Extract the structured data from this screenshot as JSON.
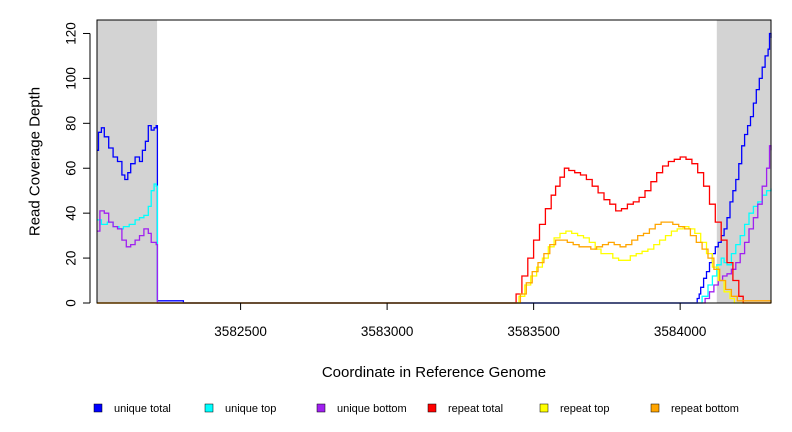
{
  "chart_data": {
    "type": "line",
    "title": "",
    "xlabel": "Coordinate in Reference Genome",
    "ylabel": "Read Coverage Depth",
    "xlim": [
      3582010,
      3584310
    ],
    "ylim": [
      0,
      126
    ],
    "x_ticks": [
      3582500,
      3583000,
      3583500,
      3584000
    ],
    "x_tick_labels": [
      "3582500",
      "3583000",
      "3583500",
      "3584000"
    ],
    "y_ticks": [
      0,
      20,
      40,
      60,
      80,
      100,
      120
    ],
    "y_tick_labels": [
      "0",
      "20",
      "40",
      "60",
      "80",
      "100",
      "120"
    ],
    "shaded_regions": [
      {
        "x": [
          3582010,
          3582215
        ],
        "color": "#d3d3d3"
      },
      {
        "x": [
          3584125,
          3584310
        ],
        "color": "#d3d3d3"
      }
    ],
    "legend_position": "bottom",
    "grid": false,
    "series": [
      {
        "name": "unique total",
        "color": "#0000ff",
        "x": [
          3582010,
          3582015,
          3582025,
          3582035,
          3582050,
          3582065,
          3582080,
          3582095,
          3582105,
          3582115,
          3582125,
          3582140,
          3582155,
          3582165,
          3582175,
          3582185,
          3582195,
          3582205,
          3582212,
          3582216,
          3582230,
          3582300,
          3582305,
          3584050,
          3584058,
          3584065,
          3584070,
          3584080,
          3584090,
          3584100,
          3584110,
          3584120,
          3584130,
          3584140,
          3584150,
          3584160,
          3584170,
          3584180,
          3584190,
          3584200,
          3584210,
          3584220,
          3584230,
          3584240,
          3584250,
          3584260,
          3584270,
          3584280,
          3584290,
          3584300,
          3584305,
          3584310
        ],
        "y": [
          68,
          76,
          78,
          74,
          69,
          65,
          63,
          57,
          55,
          58,
          62,
          65,
          63,
          68,
          72,
          79,
          77,
          78,
          79,
          1,
          1,
          1,
          0,
          0,
          2,
          4,
          7,
          11,
          14,
          18,
          22,
          25,
          27,
          30,
          33,
          38,
          45,
          50,
          55,
          62,
          70,
          75,
          79,
          83,
          89,
          95,
          100,
          105,
          110,
          113,
          120,
          118
        ]
      },
      {
        "name": "unique top",
        "color": "#00ffff",
        "x": [
          3582010,
          3582025,
          3582045,
          3582065,
          3582085,
          3582100,
          3582120,
          3582140,
          3582155,
          3582170,
          3582185,
          3582195,
          3582205,
          3582212,
          3582216,
          3584060,
          3584075,
          3584095,
          3584110,
          3584125,
          3584140,
          3584150,
          3584160,
          3584175,
          3584190,
          3584205,
          3584220,
          3584235,
          3584250,
          3584265,
          3584280,
          3584295,
          3584310
        ],
        "y": [
          37,
          35,
          36,
          34,
          33,
          34,
          35,
          37,
          38,
          39,
          43,
          50,
          53,
          52,
          0,
          0,
          3,
          8,
          12,
          17,
          20,
          18,
          17,
          22,
          26,
          30,
          35,
          40,
          43,
          45,
          48,
          50,
          51
        ]
      },
      {
        "name": "unique bottom",
        "color": "#a020f0",
        "x": [
          3582010,
          3582020,
          3582035,
          3582050,
          3582065,
          3582080,
          3582095,
          3582110,
          3582125,
          3582140,
          3582155,
          3582170,
          3582185,
          3582195,
          3582205,
          3582212,
          3582216,
          3584070,
          3584085,
          3584100,
          3584115,
          3584130,
          3584145,
          3584160,
          3584175,
          3584190,
          3584205,
          3584220,
          3584235,
          3584250,
          3584265,
          3584280,
          3584295,
          3584305,
          3584310
        ],
        "y": [
          32,
          41,
          40,
          36,
          34,
          33,
          28,
          25,
          26,
          28,
          30,
          33,
          31,
          27,
          27,
          26,
          0,
          0,
          2,
          5,
          8,
          10,
          12,
          13,
          15,
          18,
          22,
          27,
          33,
          38,
          44,
          52,
          60,
          70,
          68
        ]
      },
      {
        "name": "repeat total",
        "color": "#ff0000",
        "x": [
          3582010,
          3583430,
          3583440,
          3583460,
          3583480,
          3583500,
          3583520,
          3583540,
          3583560,
          3583575,
          3583590,
          3583605,
          3583620,
          3583640,
          3583660,
          3583680,
          3583700,
          3583720,
          3583740,
          3583760,
          3583780,
          3583800,
          3583820,
          3583840,
          3583860,
          3583880,
          3583900,
          3583920,
          3583940,
          3583960,
          3583980,
          3584000,
          3584020,
          3584040,
          3584060,
          3584080,
          3584100,
          3584120,
          3584140,
          3584160,
          3584180,
          3584200,
          3584215,
          3584310
        ],
        "y": [
          0,
          0,
          4,
          12,
          20,
          28,
          35,
          42,
          48,
          52,
          56,
          60,
          59,
          58,
          57,
          55,
          52,
          49,
          46,
          44,
          41,
          42,
          44,
          45,
          47,
          50,
          54,
          58,
          61,
          63,
          64,
          65,
          64,
          62,
          58,
          52,
          44,
          36,
          28,
          18,
          10,
          3,
          0,
          0
        ]
      },
      {
        "name": "repeat top",
        "color": "#ffff00",
        "x": [
          3582010,
          3583440,
          3583450,
          3583470,
          3583490,
          3583510,
          3583530,
          3583550,
          3583570,
          3583590,
          3583610,
          3583630,
          3583650,
          3583670,
          3583690,
          3583710,
          3583730,
          3583750,
          3583770,
          3583790,
          3583810,
          3583830,
          3583850,
          3583870,
          3583890,
          3583910,
          3583930,
          3583950,
          3583970,
          3583990,
          3584010,
          3584030,
          3584050,
          3584070,
          3584090,
          3584110,
          3584130,
          3584150,
          3584170,
          3584185,
          3584310
        ],
        "y": [
          0,
          0,
          3,
          8,
          12,
          16,
          20,
          25,
          29,
          31,
          32,
          31,
          30,
          29,
          27,
          24,
          22,
          22,
          20,
          19,
          19,
          21,
          22,
          23,
          24,
          26,
          28,
          30,
          32,
          33,
          34,
          33,
          31,
          27,
          22,
          16,
          10,
          5,
          2,
          0,
          0
        ]
      },
      {
        "name": "repeat bottom",
        "color": "#ffa500",
        "x": [
          3582010,
          3583440,
          3583455,
          3583475,
          3583495,
          3583515,
          3583535,
          3583555,
          3583575,
          3583595,
          3583615,
          3583635,
          3583655,
          3583675,
          3583695,
          3583715,
          3583735,
          3583755,
          3583775,
          3583795,
          3583815,
          3583835,
          3583855,
          3583875,
          3583895,
          3583915,
          3583935,
          3583955,
          3583975,
          3583995,
          3584015,
          3584035,
          3584055,
          3584075,
          3584095,
          3584115,
          3584135,
          3584155,
          3584175,
          3584195,
          3584310
        ],
        "y": [
          0,
          0,
          4,
          9,
          14,
          18,
          22,
          26,
          28,
          28,
          27,
          26,
          25,
          25,
          24,
          25,
          26,
          27,
          26,
          25,
          26,
          28,
          30,
          31,
          33,
          35,
          36,
          36,
          35,
          34,
          33,
          30,
          27,
          24,
          20,
          15,
          10,
          6,
          3,
          1,
          0
        ]
      }
    ]
  }
}
